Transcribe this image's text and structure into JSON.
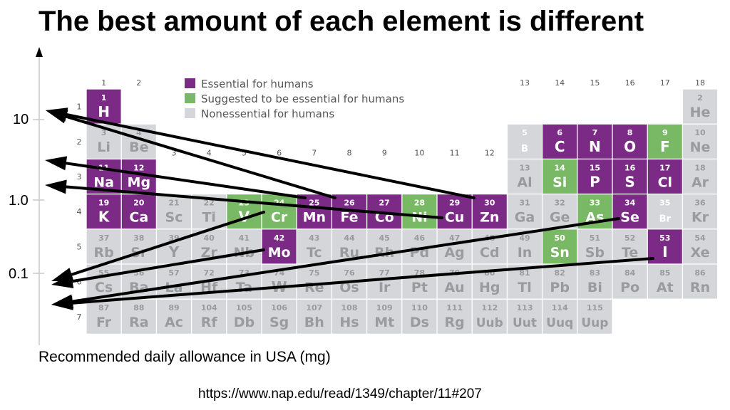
{
  "title": "The best amount of each element is different",
  "axis": {
    "y_labels": [
      "10",
      "1.0",
      "0.1"
    ],
    "x_label": "Recommended daily allowance in USA (mg)"
  },
  "source_url": "https://www.nap.edu/read/1349/chapter/11#207",
  "legend": [
    {
      "label": "Essential for humans",
      "color": "#7b2a86"
    },
    {
      "label": "Suggested to be essential for humans",
      "color": "#79b965"
    },
    {
      "label": "Nonessential for humans",
      "color": "#d4d6da"
    }
  ],
  "group_labels": [
    "1",
    "2",
    "3",
    "4",
    "5",
    "6",
    "7",
    "8",
    "9",
    "10",
    "11",
    "12",
    "13",
    "14",
    "15",
    "16",
    "17",
    "18"
  ],
  "period_labels": [
    "1",
    "2",
    "3",
    "4",
    "5",
    "6",
    "7"
  ],
  "colors": {
    "essential": "#7b2a86",
    "suggested": "#79b965",
    "nonessential": "#d4d6da",
    "nonessential_text": "#9a9b9f",
    "arrow": "#000000"
  },
  "elements": [
    {
      "num": "1",
      "sym": "H",
      "p": 1,
      "g": 1,
      "cat": "essential"
    },
    {
      "num": "2",
      "sym": "He",
      "p": 1,
      "g": 18,
      "cat": "nonessential"
    },
    {
      "num": "3",
      "sym": "Li",
      "p": 2,
      "g": 1,
      "cat": "nonessential"
    },
    {
      "num": "4",
      "sym": "Be",
      "p": 2,
      "g": 2,
      "cat": "nonessential"
    },
    {
      "num": "5",
      "sym": "B",
      "p": 2,
      "g": 13,
      "cat": "suggested_gray"
    },
    {
      "num": "6",
      "sym": "C",
      "p": 2,
      "g": 14,
      "cat": "essential"
    },
    {
      "num": "7",
      "sym": "N",
      "p": 2,
      "g": 15,
      "cat": "essential"
    },
    {
      "num": "8",
      "sym": "O",
      "p": 2,
      "g": 16,
      "cat": "essential"
    },
    {
      "num": "9",
      "sym": "F",
      "p": 2,
      "g": 17,
      "cat": "suggested"
    },
    {
      "num": "10",
      "sym": "Ne",
      "p": 2,
      "g": 18,
      "cat": "nonessential"
    },
    {
      "num": "11",
      "sym": "Na",
      "p": 3,
      "g": 1,
      "cat": "essential"
    },
    {
      "num": "12",
      "sym": "Mg",
      "p": 3,
      "g": 2,
      "cat": "essential"
    },
    {
      "num": "13",
      "sym": "Al",
      "p": 3,
      "g": 13,
      "cat": "nonessential"
    },
    {
      "num": "14",
      "sym": "Si",
      "p": 3,
      "g": 14,
      "cat": "suggested"
    },
    {
      "num": "15",
      "sym": "P",
      "p": 3,
      "g": 15,
      "cat": "essential"
    },
    {
      "num": "16",
      "sym": "S",
      "p": 3,
      "g": 16,
      "cat": "essential"
    },
    {
      "num": "17",
      "sym": "Cl",
      "p": 3,
      "g": 17,
      "cat": "essential"
    },
    {
      "num": "18",
      "sym": "Ar",
      "p": 3,
      "g": 18,
      "cat": "nonessential"
    },
    {
      "num": "19",
      "sym": "K",
      "p": 4,
      "g": 1,
      "cat": "essential"
    },
    {
      "num": "20",
      "sym": "Ca",
      "p": 4,
      "g": 2,
      "cat": "essential"
    },
    {
      "num": "21",
      "sym": "Sc",
      "p": 4,
      "g": 3,
      "cat": "nonessential"
    },
    {
      "num": "22",
      "sym": "Ti",
      "p": 4,
      "g": 4,
      "cat": "nonessential"
    },
    {
      "num": "23",
      "sym": "V",
      "p": 4,
      "g": 5,
      "cat": "suggested"
    },
    {
      "num": "24",
      "sym": "Cr",
      "p": 4,
      "g": 6,
      "cat": "suggested"
    },
    {
      "num": "25",
      "sym": "Mn",
      "p": 4,
      "g": 7,
      "cat": "essential"
    },
    {
      "num": "26",
      "sym": "Fe",
      "p": 4,
      "g": 8,
      "cat": "essential"
    },
    {
      "num": "27",
      "sym": "Co",
      "p": 4,
      "g": 9,
      "cat": "essential"
    },
    {
      "num": "28",
      "sym": "Ni",
      "p": 4,
      "g": 10,
      "cat": "suggested"
    },
    {
      "num": "29",
      "sym": "Cu",
      "p": 4,
      "g": 11,
      "cat": "essential"
    },
    {
      "num": "30",
      "sym": "Zn",
      "p": 4,
      "g": 12,
      "cat": "essential"
    },
    {
      "num": "31",
      "sym": "Ga",
      "p": 4,
      "g": 13,
      "cat": "nonessential"
    },
    {
      "num": "32",
      "sym": "Ge",
      "p": 4,
      "g": 14,
      "cat": "nonessential"
    },
    {
      "num": "33",
      "sym": "As",
      "p": 4,
      "g": 15,
      "cat": "suggested"
    },
    {
      "num": "34",
      "sym": "Se",
      "p": 4,
      "g": 16,
      "cat": "essential"
    },
    {
      "num": "35",
      "sym": "Br",
      "p": 4,
      "g": 17,
      "cat": "suggested_gray"
    },
    {
      "num": "36",
      "sym": "Kr",
      "p": 4,
      "g": 18,
      "cat": "nonessential"
    },
    {
      "num": "37",
      "sym": "Rb",
      "p": 5,
      "g": 1,
      "cat": "nonessential"
    },
    {
      "num": "38",
      "sym": "Sr",
      "p": 5,
      "g": 2,
      "cat": "nonessential"
    },
    {
      "num": "39",
      "sym": "Y",
      "p": 5,
      "g": 3,
      "cat": "nonessential"
    },
    {
      "num": "40",
      "sym": "Zr",
      "p": 5,
      "g": 4,
      "cat": "nonessential"
    },
    {
      "num": "41",
      "sym": "Nb",
      "p": 5,
      "g": 5,
      "cat": "nonessential"
    },
    {
      "num": "42",
      "sym": "Mo",
      "p": 5,
      "g": 6,
      "cat": "essential"
    },
    {
      "num": "43",
      "sym": "Tc",
      "p": 5,
      "g": 7,
      "cat": "nonessential"
    },
    {
      "num": "44",
      "sym": "Ru",
      "p": 5,
      "g": 8,
      "cat": "nonessential"
    },
    {
      "num": "45",
      "sym": "Rh",
      "p": 5,
      "g": 9,
      "cat": "nonessential"
    },
    {
      "num": "46",
      "sym": "Pd",
      "p": 5,
      "g": 10,
      "cat": "nonessential"
    },
    {
      "num": "47",
      "sym": "Ag",
      "p": 5,
      "g": 11,
      "cat": "nonessential"
    },
    {
      "num": "48",
      "sym": "Cd",
      "p": 5,
      "g": 12,
      "cat": "nonessential"
    },
    {
      "num": "49",
      "sym": "In",
      "p": 5,
      "g": 13,
      "cat": "nonessential"
    },
    {
      "num": "50",
      "sym": "Sn",
      "p": 5,
      "g": 14,
      "cat": "suggested"
    },
    {
      "num": "51",
      "sym": "Sb",
      "p": 5,
      "g": 15,
      "cat": "nonessential"
    },
    {
      "num": "52",
      "sym": "Te",
      "p": 5,
      "g": 16,
      "cat": "nonessential"
    },
    {
      "num": "53",
      "sym": "I",
      "p": 5,
      "g": 17,
      "cat": "essential"
    },
    {
      "num": "54",
      "sym": "Xe",
      "p": 5,
      "g": 18,
      "cat": "nonessential"
    },
    {
      "num": "55",
      "sym": "Cs",
      "p": 6,
      "g": 1,
      "cat": "nonessential"
    },
    {
      "num": "56",
      "sym": "Ba",
      "p": 6,
      "g": 2,
      "cat": "nonessential"
    },
    {
      "num": "57",
      "sym": "La",
      "p": 6,
      "g": 3,
      "cat": "nonessential"
    },
    {
      "num": "72",
      "sym": "Hf",
      "p": 6,
      "g": 4,
      "cat": "nonessential"
    },
    {
      "num": "73",
      "sym": "Ta",
      "p": 6,
      "g": 5,
      "cat": "nonessential"
    },
    {
      "num": "74",
      "sym": "W",
      "p": 6,
      "g": 6,
      "cat": "nonessential"
    },
    {
      "num": "75",
      "sym": "Re",
      "p": 6,
      "g": 7,
      "cat": "nonessential"
    },
    {
      "num": "76",
      "sym": "Os",
      "p": 6,
      "g": 8,
      "cat": "nonessential"
    },
    {
      "num": "77",
      "sym": "Ir",
      "p": 6,
      "g": 9,
      "cat": "nonessential"
    },
    {
      "num": "78",
      "sym": "Pt",
      "p": 6,
      "g": 10,
      "cat": "nonessential"
    },
    {
      "num": "79",
      "sym": "Au",
      "p": 6,
      "g": 11,
      "cat": "nonessential"
    },
    {
      "num": "80",
      "sym": "Hg",
      "p": 6,
      "g": 12,
      "cat": "nonessential"
    },
    {
      "num": "81",
      "sym": "Tl",
      "p": 6,
      "g": 13,
      "cat": "nonessential"
    },
    {
      "num": "82",
      "sym": "Pb",
      "p": 6,
      "g": 14,
      "cat": "nonessential"
    },
    {
      "num": "83",
      "sym": "Bi",
      "p": 6,
      "g": 15,
      "cat": "nonessential"
    },
    {
      "num": "84",
      "sym": "Po",
      "p": 6,
      "g": 16,
      "cat": "nonessential"
    },
    {
      "num": "85",
      "sym": "At",
      "p": 6,
      "g": 17,
      "cat": "nonessential"
    },
    {
      "num": "86",
      "sym": "Rn",
      "p": 6,
      "g": 18,
      "cat": "nonessential"
    },
    {
      "num": "87",
      "sym": "Fr",
      "p": 7,
      "g": 1,
      "cat": "nonessential"
    },
    {
      "num": "88",
      "sym": "Ra",
      "p": 7,
      "g": 2,
      "cat": "nonessential"
    },
    {
      "num": "89",
      "sym": "Ac",
      "p": 7,
      "g": 3,
      "cat": "nonessential"
    },
    {
      "num": "104",
      "sym": "Rf",
      "p": 7,
      "g": 4,
      "cat": "nonessential"
    },
    {
      "num": "105",
      "sym": "Db",
      "p": 7,
      "g": 5,
      "cat": "nonessential"
    },
    {
      "num": "106",
      "sym": "Sg",
      "p": 7,
      "g": 6,
      "cat": "nonessential"
    },
    {
      "num": "107",
      "sym": "Bh",
      "p": 7,
      "g": 7,
      "cat": "nonessential"
    },
    {
      "num": "108",
      "sym": "Hs",
      "p": 7,
      "g": 8,
      "cat": "nonessential"
    },
    {
      "num": "109",
      "sym": "Mt",
      "p": 7,
      "g": 9,
      "cat": "nonessential"
    },
    {
      "num": "110",
      "sym": "Ds",
      "p": 7,
      "g": 10,
      "cat": "nonessential"
    },
    {
      "num": "111",
      "sym": "Rg",
      "p": 7,
      "g": 11,
      "cat": "nonessential"
    },
    {
      "num": "112",
      "sym": "Uub",
      "p": 7,
      "g": 12,
      "cat": "nonessential"
    },
    {
      "num": "113",
      "sym": "Uut",
      "p": 7,
      "g": 13,
      "cat": "nonessential"
    },
    {
      "num": "114",
      "sym": "Uuq",
      "p": 7,
      "g": 14,
      "cat": "nonessential"
    },
    {
      "num": "115",
      "sym": "Uup",
      "p": 7,
      "g": 15,
      "cat": "nonessential"
    }
  ],
  "arrows": [
    {
      "from": "Cu",
      "to": "10"
    },
    {
      "from": "Fe",
      "to": "10"
    },
    {
      "from": "Mn",
      "to": "1.0 upper"
    },
    {
      "from": "Ni",
      "to": "1.0 lower"
    },
    {
      "from": "V",
      "to": "0.1"
    },
    {
      "from": "Mo",
      "to": "0.1"
    },
    {
      "from": "Se",
      "to": "0.1 lower"
    },
    {
      "from": "I",
      "to": "0.1 lower"
    }
  ]
}
